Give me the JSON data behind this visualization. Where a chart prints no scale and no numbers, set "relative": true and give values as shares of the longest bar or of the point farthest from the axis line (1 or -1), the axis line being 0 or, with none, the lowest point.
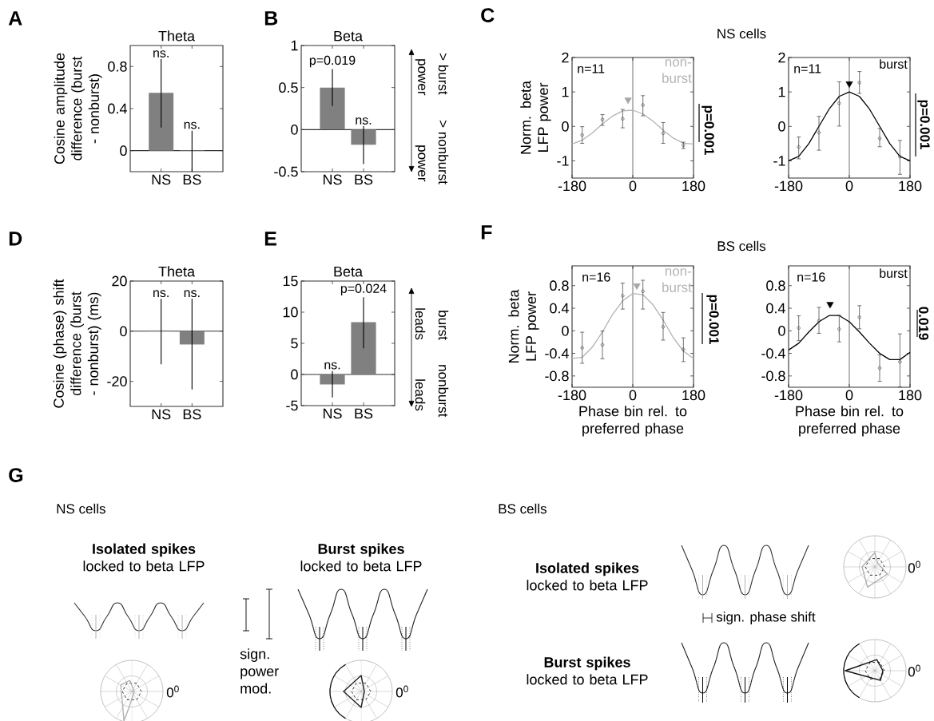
{
  "chart_data": [
    {
      "type": "bar",
      "title": "Theta",
      "ylabel": "Cosine amplitude difference (burst - nonburst)",
      "categories": [
        "NS",
        "BS"
      ],
      "values": [
        0.55,
        0.005
      ],
      "errors": [
        [
          0.22,
          0.87
        ],
        [
          -0.2,
          0.19
        ]
      ],
      "color": "#808080",
      "ylim": [
        -0.2,
        1.0
      ],
      "yticks": [
        0,
        0.4,
        0.8
      ],
      "ref_lines": [
        {
          "axis": "y",
          "value": 0,
          "color": "#333333"
        }
      ],
      "annotations": [
        "A",
        {
          "text": "ns.",
          "x": "NS",
          "y": 0.87
        },
        {
          "text": "ns.",
          "x": "BS",
          "y": 0.19
        }
      ]
    },
    {
      "type": "bar",
      "title": "Beta",
      "categories": [
        "NS",
        "BS"
      ],
      "values": [
        0.5,
        -0.18
      ],
      "errors": [
        [
          0.28,
          0.72
        ],
        [
          -0.41,
          0.04
        ]
      ],
      "color": "#808080",
      "ylim": [
        -0.5,
        1
      ],
      "yticks": [
        -0.5,
        0,
        0.5,
        1
      ],
      "ref_lines": [
        {
          "axis": "y",
          "value": 0,
          "color": "#333333"
        }
      ],
      "annotations": [
        "B",
        {
          "text": "p=0.019",
          "x": "NS",
          "y": 0.72
        },
        {
          "text": "ns.",
          "x": "BS",
          "y": 0.04
        },
        "> burst",
        "power",
        "> nonburst",
        "power"
      ]
    },
    {
      "type": "line",
      "ylabel": "Norm. beta LFP power",
      "xlim": [
        -180,
        180
      ],
      "xticks": [
        -180,
        0,
        180
      ],
      "ylim": [
        -1.5,
        2
      ],
      "yticks": [
        -1,
        0,
        1,
        2
      ],
      "ref_lines": [
        {
          "axis": "x",
          "value": 0,
          "color": "#333333"
        }
      ],
      "series": [
        {
          "type": "line",
          "color": "#b3b3b3",
          "x": [
            -180,
            -150,
            -120,
            -90,
            -60,
            -30,
            0,
            30,
            60,
            90,
            120,
            150,
            180
          ],
          "values": [
            -0.51,
            -0.4,
            -0.19,
            0.07,
            0.3,
            0.45,
            0.47,
            0.36,
            0.15,
            -0.11,
            -0.34,
            -0.49,
            -0.51
          ]
        },
        {
          "type": "scatter",
          "color": "#333333",
          "marker": "circle",
          "x": [
            -150,
            -90,
            -30,
            30,
            90,
            150
          ],
          "values": [
            -0.25,
            0.2,
            0.22,
            0.62,
            -0.2,
            -0.55
          ],
          "errors": [
            [
              -0.5,
              0.0
            ],
            [
              0.02,
              0.35
            ],
            [
              -0.05,
              0.5
            ],
            [
              0.3,
              0.9
            ],
            [
              -0.5,
              0.12
            ],
            [
              -0.65,
              -0.45
            ]
          ]
        },
        {
          "type": "scatter",
          "color": "#a6a6a6",
          "marker": "triangle",
          "x": [
            -14
          ],
          "values": [
            0.77
          ]
        }
      ],
      "annotations": [
        "C",
        "n=11",
        "non- burst",
        "p=0.001"
      ]
    },
    {
      "type": "line",
      "xlim": [
        -180,
        180
      ],
      "xticks": [
        -180,
        0,
        180
      ],
      "ylim": [
        -1.5,
        2
      ],
      "yticks": [
        -1,
        0,
        1,
        2
      ],
      "ref_lines": [
        {
          "axis": "x",
          "value": 0,
          "color": "#333333"
        }
      ],
      "series": [
        {
          "type": "line",
          "color": "#000000",
          "x": [
            -180,
            -150,
            -120,
            -90,
            -60,
            -30,
            0,
            30,
            60,
            90,
            120,
            150,
            180
          ],
          "values": [
            -1.0,
            -0.87,
            -0.5,
            0,
            0.5,
            0.87,
            1.0,
            0.87,
            0.5,
            0,
            -0.5,
            -0.87,
            -1.0
          ]
        },
        {
          "type": "scatter",
          "color": "#333333",
          "marker": "circle",
          "x": [
            -150,
            -90,
            -30,
            30,
            90,
            150
          ],
          "values": [
            -0.6,
            -0.18,
            0.67,
            1.27,
            -0.35,
            -0.88
          ],
          "errors": [
            [
              -0.95,
              -0.3
            ],
            [
              -0.7,
              0.3
            ],
            [
              0.0,
              1.3
            ],
            [
              0.95,
              1.6
            ],
            [
              -0.6,
              -0.05
            ],
            [
              -1.4,
              -0.4
            ]
          ]
        },
        {
          "type": "scatter",
          "color": "#000000",
          "marker": "triangle",
          "x": [
            0
          ],
          "values": [
            1.24
          ]
        }
      ],
      "annotations": [
        "n=11",
        "burst",
        "p=0.001"
      ]
    },
    {
      "type": "bar",
      "title": "Theta",
      "ylabel": "Cosine (phase) shift difference (burst - nonburst) (ms)",
      "categories": [
        "NS",
        "BS"
      ],
      "values": [
        0.3,
        -5.3
      ],
      "errors": [
        [
          -13.2,
          12.9
        ],
        [
          -23.2,
          12.9
        ]
      ],
      "color": "#808080",
      "ylim": [
        -30,
        20
      ],
      "yticks": [
        -20,
        0,
        20
      ],
      "ref_lines": [
        {
          "axis": "y",
          "value": 0,
          "color": "#333333"
        }
      ],
      "annotations": [
        "D",
        {
          "text": "ns.",
          "x": "NS",
          "y": 12.9
        },
        {
          "text": "ns.",
          "x": "BS",
          "y": 12.9
        }
      ]
    },
    {
      "type": "bar",
      "title": "Beta",
      "categories": [
        "NS",
        "BS"
      ],
      "values": [
        -1.6,
        8.4
      ],
      "errors": [
        [
          -3.7,
          0.55
        ],
        [
          4.2,
          12.4
        ]
      ],
      "color": "#808080",
      "ylim": [
        -5,
        15
      ],
      "yticks": [
        -5,
        0,
        5,
        10,
        15
      ],
      "ref_lines": [
        {
          "axis": "y",
          "value": 0,
          "color": "#333333"
        }
      ],
      "annotations": [
        "E",
        {
          "text": "ns.",
          "x": "NS",
          "y": 0.55
        },
        {
          "text": "p=0.024",
          "x": "BS",
          "y": 12.4
        },
        "burst",
        "leads",
        "nonburst",
        "leads"
      ]
    },
    {
      "type": "line",
      "ylabel": "Norm. beta LFP power",
      "xlabel": "Phase bin rel. to preferred phase",
      "xlim": [
        -180,
        180
      ],
      "xticks": [
        -180,
        0,
        180
      ],
      "ylim": [
        -1.0,
        1.15
      ],
      "yticks": [
        -0.8,
        -0.4,
        0,
        0.4,
        0.8
      ],
      "ref_lines": [
        {
          "axis": "x",
          "value": 0,
          "color": "#333333"
        }
      ],
      "series": [
        {
          "type": "line",
          "color": "#b3b3b3",
          "x": [
            -180,
            -150,
            -120,
            -90,
            -60,
            -30,
            0,
            30,
            60,
            90,
            120,
            150,
            180
          ],
          "values": [
            -0.49,
            -0.47,
            -0.29,
            -0.02,
            0.29,
            0.53,
            0.66,
            0.64,
            0.46,
            0.19,
            -0.12,
            -0.36,
            -0.49
          ]
        },
        {
          "type": "scatter",
          "color": "#333333",
          "marker": "circle",
          "x": [
            -150,
            -90,
            -30,
            30,
            90,
            150
          ],
          "values": [
            -0.3,
            -0.25,
            0.62,
            0.7,
            0.07,
            -0.33
          ],
          "errors": [
            [
              -0.58,
              -0.02
            ],
            [
              -0.5,
              0.0
            ],
            [
              0.38,
              0.85
            ],
            [
              0.38,
              0.9
            ],
            [
              -0.17,
              0.33
            ],
            [
              -0.55,
              -0.12
            ]
          ]
        },
        {
          "type": "scatter",
          "color": "#a6a6a6",
          "marker": "triangle",
          "x": [
            12
          ],
          "values": [
            0.8
          ]
        }
      ],
      "annotations": [
        "F",
        "n=16",
        "non- burst",
        "p=0.001"
      ]
    },
    {
      "type": "line",
      "xlabel": "Phase bin rel. to preferred phase",
      "xlim": [
        -180,
        180
      ],
      "xticks": [
        -180,
        0,
        180
      ],
      "ylim": [
        -1.0,
        1.15
      ],
      "yticks": [
        -0.8,
        -0.4,
        0,
        0.4,
        0.8
      ],
      "ref_lines": [
        {
          "axis": "x",
          "value": 0,
          "color": "#333333"
        }
      ],
      "series": [
        {
          "type": "line",
          "color": "#000000",
          "x": [
            -180,
            -150,
            -120,
            -90,
            -60,
            -30,
            0,
            30,
            60,
            90,
            120,
            150,
            180
          ],
          "values": [
            -0.34,
            -0.22,
            -0.02,
            0.16,
            0.27,
            0.27,
            0.16,
            -0.02,
            -0.22,
            -0.4,
            -0.51,
            -0.51,
            -0.38
          ]
        },
        {
          "type": "scatter",
          "color": "#333333",
          "marker": "circle",
          "x": [
            -150,
            -90,
            -30,
            30,
            90,
            150
          ],
          "values": [
            0.05,
            0.18,
            0.03,
            0.24,
            -0.66,
            -0.55
          ],
          "errors": [
            [
              -0.18,
              0.27
            ],
            [
              -0.05,
              0.42
            ],
            [
              -0.2,
              0.28
            ],
            [
              0.03,
              0.45
            ],
            [
              -0.9,
              -0.42
            ],
            [
              -1.0,
              -0.05
            ]
          ]
        },
        {
          "type": "scatter",
          "color": "#000000",
          "marker": "triangle",
          "x": [
            -57
          ],
          "values": [
            0.47
          ]
        }
      ],
      "annotations": [
        "n=16",
        "burst",
        "0.019"
      ]
    },
    {
      "type": "line",
      "relative": true,
      "categories": [
        null,
        null,
        null,
        null,
        null,
        null,
        null,
        null,
        null,
        null,
        null,
        null,
        null
      ],
      "values": [
        1,
        0.5,
        0,
        0.5,
        1,
        0.5,
        0,
        0.5,
        1,
        0.5,
        0,
        0.5,
        1
      ],
      "color": "#333333"
    },
    {
      "type": "line",
      "relative": true,
      "categories": [
        null,
        null,
        null,
        null,
        null,
        null,
        null,
        null,
        null,
        null,
        null,
        null,
        null
      ],
      "values": [
        1,
        0.5,
        0,
        0.5,
        1,
        0.5,
        0,
        0.5,
        1,
        0.5,
        0,
        0.5,
        1
      ],
      "color": "#222222"
    },
    {
      "type": "line",
      "relative": true,
      "categories": [
        null,
        null,
        null,
        null,
        null,
        null,
        null,
        null,
        null,
        null,
        null,
        null,
        null
      ],
      "values": [
        1,
        0.5,
        0,
        0.5,
        1,
        0.5,
        0,
        0.5,
        1,
        0.5,
        0,
        0.5,
        1
      ],
      "color": "#333333"
    },
    {
      "type": "line",
      "relative": true,
      "categories": [
        null,
        null,
        null,
        null,
        null,
        null,
        null,
        null,
        null,
        null,
        null,
        null,
        null
      ],
      "values": [
        1,
        0.5,
        0,
        0.5,
        1,
        0.5,
        0,
        0.5,
        1,
        0.5,
        0,
        0.5,
        1
      ],
      "color": "#222222"
    },
    {
      "type": "other",
      "annotations": [
        "G",
        "NS cells",
        "**Isolated spikes** locked to beta LFP",
        "**Burst spikes** locked to beta LFP",
        "sign. power mod.",
        "0$^{0}$",
        "0$^{0}$",
        "BS cells",
        "**Isolated spikes** locked to beta LFP",
        "sign. phase shift",
        "**Burst spikes** locked to beta LFP",
        "0$^{0}$",
        "0$^{0}$"
      ]
    },
    {
      "type": "other",
      "annotations": [
        "NS cells"
      ]
    },
    {
      "type": "other",
      "annotations": [
        "BS cells"
      ]
    }
  ]
}
